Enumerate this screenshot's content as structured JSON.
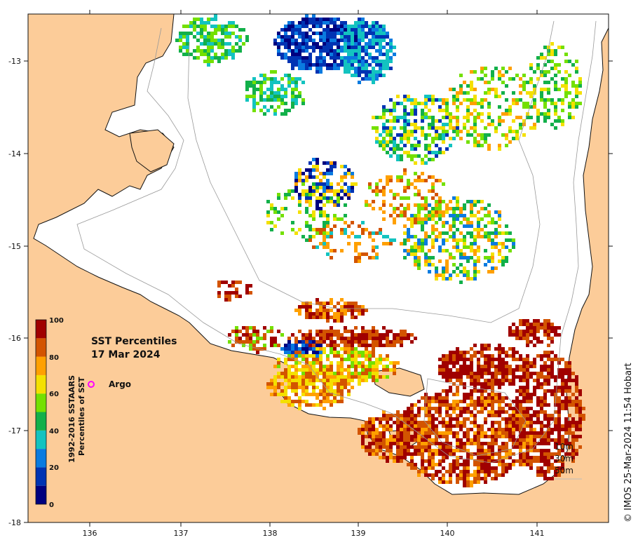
{
  "map": {
    "title_line1": "SST Percentiles",
    "title_line2": "17 Mar 2024",
    "credit": "© IMOS 25-Mar-2024 11:54 Hobart",
    "x_ticks": [
      "136",
      "137",
      "138",
      "139",
      "140",
      "141"
    ],
    "y_ticks": [
      "-13",
      "-14",
      "-15",
      "-16",
      "-17",
      "-18"
    ],
    "xlim": [
      135.3,
      141.8
    ],
    "ylim": [
      -18.0,
      -12.5
    ],
    "land_color": "#fccc99",
    "ocean_color": "#ffffff",
    "legend": {
      "marker": "o",
      "marker_color": "#ff00ff",
      "label": "Argo"
    },
    "depth_contours": [
      "10m",
      "30m",
      "50m"
    ]
  },
  "colorbar": {
    "title_line1": "1992-2016 SSTAARS",
    "title_line2": "Percentiles of SST",
    "tick_labels": [
      "100",
      "80",
      "60",
      "40",
      "20",
      "0"
    ],
    "bins": [
      {
        "from": 0,
        "to": 10,
        "color": "#00007f"
      },
      {
        "from": 10,
        "to": 20,
        "color": "#0033b3"
      },
      {
        "from": 20,
        "to": 30,
        "color": "#0a7be0"
      },
      {
        "from": 30,
        "to": 40,
        "color": "#13c3c0"
      },
      {
        "from": 40,
        "to": 50,
        "color": "#12b04a"
      },
      {
        "from": 50,
        "to": 60,
        "color": "#74e000"
      },
      {
        "from": 60,
        "to": 70,
        "color": "#f4e000"
      },
      {
        "from": 70,
        "to": 80,
        "color": "#ffa000"
      },
      {
        "from": 80,
        "to": 90,
        "color": "#d35400"
      },
      {
        "from": 90,
        "to": 100,
        "color": "#a00000"
      }
    ]
  }
}
